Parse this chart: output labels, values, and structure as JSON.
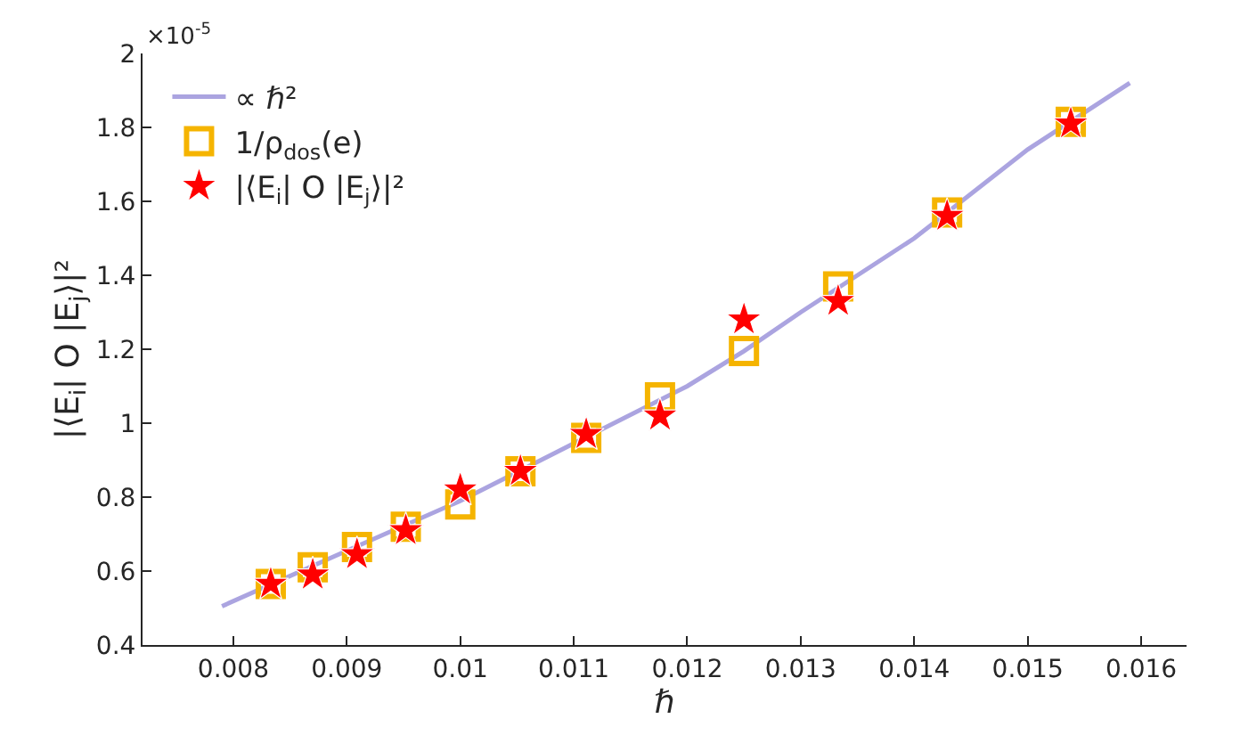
{
  "chart_data": {
    "type": "scatter",
    "xlabel": "ℏ",
    "ylabel": "|⟨E$_{i}$| O |E$_{j}$⟩|²",
    "annotations": [
      "×10$^{-5}$"
    ],
    "xlim": [
      0.0072,
      0.0164
    ],
    "xticks": [
      0.008,
      0.009,
      0.01,
      0.011,
      0.012,
      0.013,
      0.014,
      0.015,
      0.016
    ],
    "ylim": [
      0.4,
      2
    ],
    "yticks": [
      0.4,
      0.6,
      0.8,
      1,
      1.2,
      1.4,
      1.6,
      1.8,
      2
    ],
    "legend": "top left",
    "series": [
      {
        "name": "∝ ℏ²",
        "type": "line",
        "marker": "none",
        "line_style": "solid",
        "color": "#aba4e0",
        "x": [
          0.0079,
          0.009,
          0.01,
          0.011,
          0.012,
          0.0125,
          0.013,
          0.014,
          0.015,
          0.0159
        ],
        "values": [
          0.505,
          0.655,
          0.79,
          0.945,
          1.1,
          1.195,
          1.3,
          1.5,
          1.74,
          1.92
        ]
      },
      {
        "name": "1/ρ$_{dos}$(e)",
        "marker": "square",
        "color": "#f5b400",
        "x": [
          0.00833,
          0.0087,
          0.00909,
          0.00952,
          0.01,
          0.01053,
          0.01111,
          0.01176,
          0.0125,
          0.01333,
          0.01429,
          0.01538
        ],
        "values": [
          0.565,
          0.61,
          0.665,
          0.72,
          0.78,
          0.87,
          0.96,
          1.07,
          1.195,
          1.37,
          1.57,
          1.815
        ]
      },
      {
        "name": "|⟨E$_{i}$| O |E$_{j}$⟩|²",
        "marker": "star",
        "color": "#ff0000",
        "x": [
          0.00833,
          0.0087,
          0.00909,
          0.00952,
          0.01,
          0.01053,
          0.01111,
          0.01176,
          0.0125,
          0.01333,
          0.01429,
          0.01538
        ],
        "values": [
          0.565,
          0.59,
          0.645,
          0.71,
          0.82,
          0.87,
          0.97,
          1.02,
          1.28,
          1.33,
          1.56,
          1.81
        ]
      }
    ]
  }
}
